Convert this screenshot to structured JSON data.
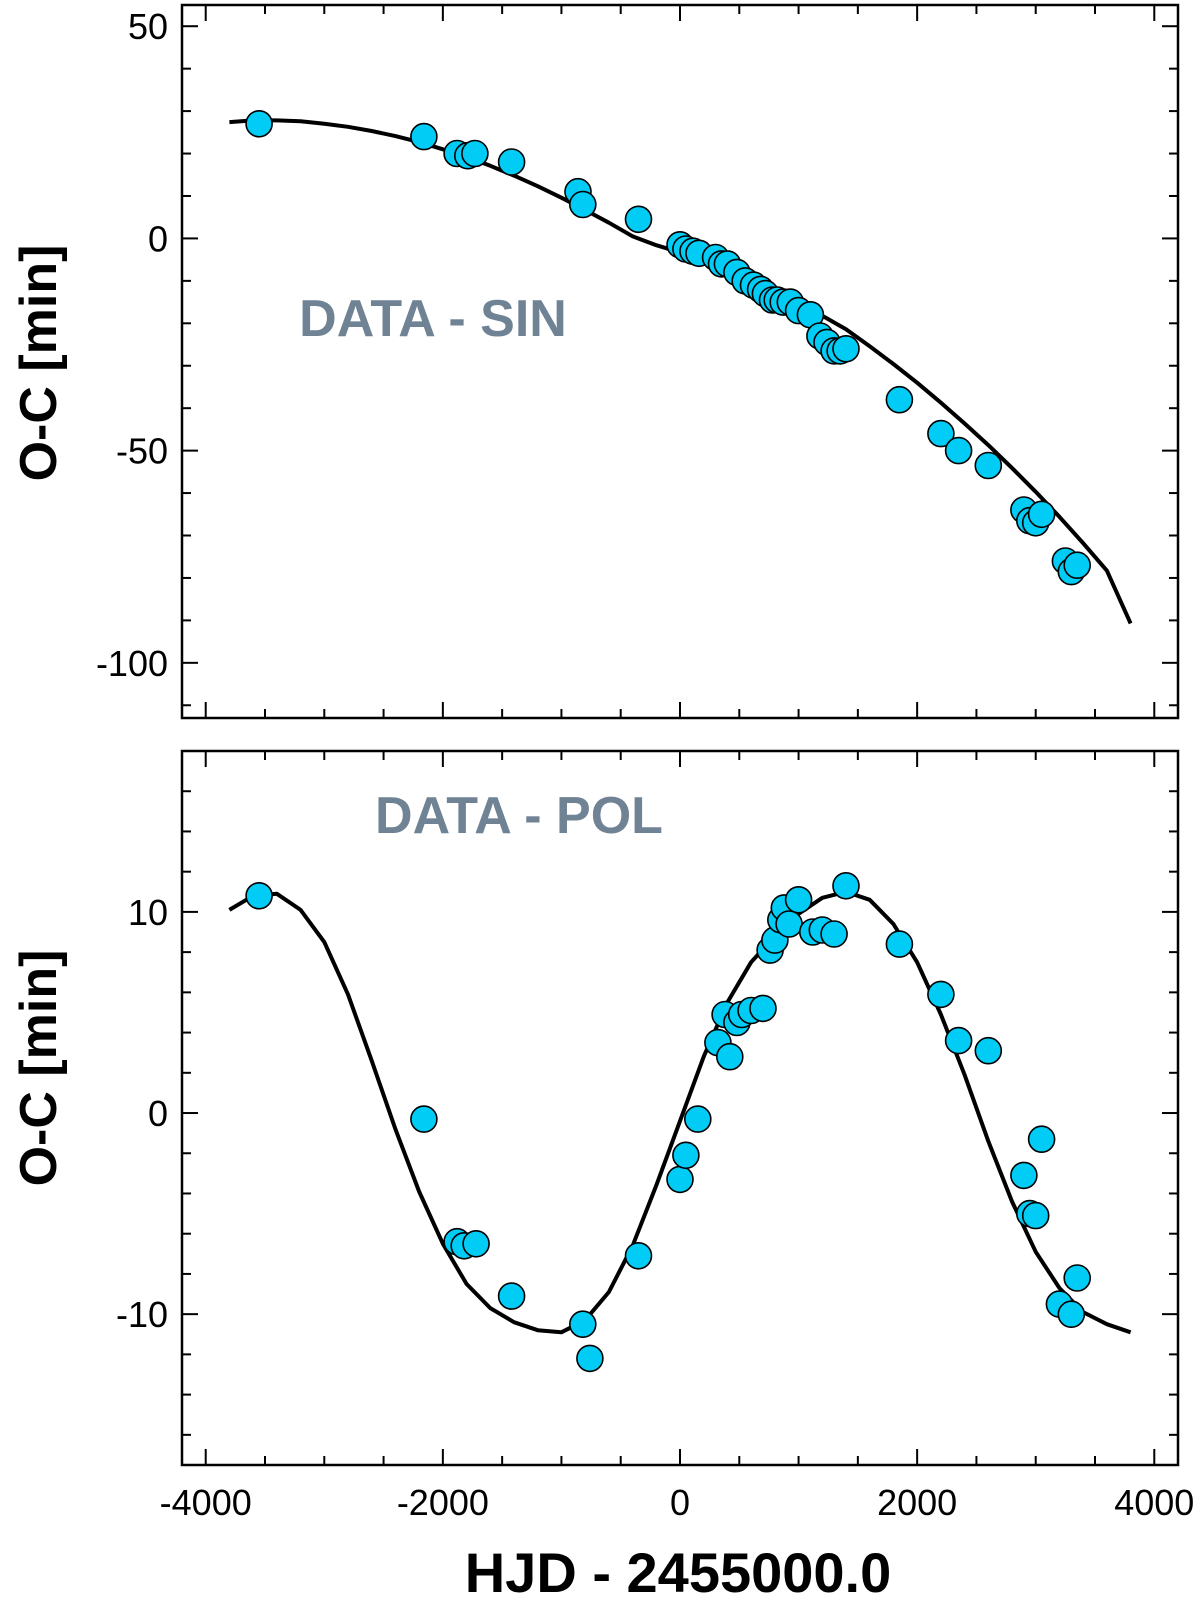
{
  "chart_data": [
    {
      "type": "scatter",
      "title": "",
      "annotation": "DATA - SIN",
      "xlabel": "",
      "ylabel": "O-C [min]",
      "xlim": [
        -4200,
        4200
      ],
      "ylim": [
        -113,
        55
      ],
      "xticks": [
        -4000,
        -2000,
        0,
        2000,
        4000
      ],
      "xticklabels": [
        "",
        "",
        "",
        "",
        ""
      ],
      "yticks": [
        50,
        0,
        -50,
        -100
      ],
      "yticklabels": [
        "50",
        "0",
        "-50",
        "-100"
      ],
      "grid": false,
      "marker_color": "#00ccf5",
      "curve_color": "#000000",
      "series": [
        {
          "name": "data",
          "x": [
            -3550,
            -2160,
            -1880,
            -1790,
            -1730,
            -1420,
            -860,
            -820,
            -350,
            0,
            50,
            110,
            160,
            300,
            350,
            400,
            480,
            550,
            620,
            680,
            720,
            780,
            820,
            870,
            930,
            1000,
            1100,
            1180,
            1240,
            1300,
            1350,
            1400,
            1850,
            2200,
            2350,
            2600,
            2900,
            2950,
            3000,
            3050,
            3250,
            3300,
            3350
          ],
          "y": [
            27,
            24,
            20,
            19.5,
            20,
            18,
            11,
            8,
            4.5,
            -1.5,
            -2.5,
            -3,
            -3.5,
            -4.5,
            -6,
            -6,
            -8,
            -10,
            -11,
            -12,
            -13,
            -14.5,
            -14.5,
            -15,
            -15,
            -17,
            -18,
            -23,
            -24.5,
            -26.5,
            -26.5,
            -26,
            -38,
            -46,
            -50,
            -53.5,
            -64,
            -66.5,
            -67,
            -65,
            -76,
            -78.5,
            -77
          ],
          "marker": "circle"
        },
        {
          "name": "fit",
          "x": [
            -3800,
            -3600,
            -3400,
            -3200,
            -3000,
            -2800,
            -2600,
            -2400,
            -2200,
            -2000,
            -1800,
            -1600,
            -1400,
            -1200,
            -1000,
            -800,
            -600,
            -400,
            -200,
            0,
            200,
            400,
            600,
            800,
            1000,
            1200,
            1400,
            1600,
            1800,
            2000,
            2200,
            2400,
            2600,
            2800,
            3000,
            3200,
            3400,
            3600,
            3800
          ],
          "y": [
            27.4,
            27.8,
            27.8,
            27.6,
            27.0,
            26.3,
            25.3,
            24.1,
            22.7,
            21.0,
            19.2,
            17.1,
            14.8,
            12.3,
            9.6,
            6.7,
            3.7,
            0.5,
            -1.6,
            -3.3,
            -5.5,
            -7.8,
            -10.2,
            -12.7,
            -15.4,
            -18.2,
            -21.4,
            -25.4,
            -29.6,
            -34.0,
            -38.7,
            -43.6,
            -48.7,
            -54.1,
            -59.7,
            -65.6,
            -71.8,
            -78.3,
            -90.7
          ],
          "style": "line"
        }
      ]
    },
    {
      "type": "scatter",
      "title": "",
      "annotation": "DATA - POL",
      "xlabel": "HJD - 2455000.0",
      "ylabel": "O-C [min]",
      "xlim": [
        -4200,
        4200
      ],
      "ylim": [
        -17.5,
        18
      ],
      "xticks": [
        -4000,
        -2000,
        0,
        2000,
        4000
      ],
      "xticklabels": [
        "-4000",
        "-2000",
        "0",
        "2000",
        "4000"
      ],
      "yticks": [
        10,
        0,
        -10
      ],
      "yticklabels": [
        "10",
        "0",
        "-10"
      ],
      "grid": false,
      "marker_color": "#00ccf5",
      "curve_color": "#000000",
      "series": [
        {
          "name": "data",
          "x": [
            -3550,
            -2160,
            -1880,
            -1820,
            -1720,
            -1420,
            -820,
            -760,
            -350,
            0,
            50,
            150,
            320,
            380,
            420,
            480,
            520,
            600,
            700,
            760,
            800,
            850,
            880,
            920,
            1000,
            1120,
            1200,
            1300,
            1400,
            1850,
            2200,
            2350,
            2600,
            2900,
            2950,
            3000,
            3050,
            3200,
            3300,
            3350
          ],
          "y": [
            10.8,
            -0.3,
            -6.4,
            -6.6,
            -6.5,
            -9.1,
            -10.5,
            -12.2,
            -7.1,
            -3.3,
            -2.1,
            -0.3,
            3.5,
            4.9,
            2.8,
            4.5,
            4.9,
            5.1,
            5.2,
            8.1,
            8.6,
            9.6,
            10.2,
            9.4,
            10.6,
            9.0,
            9.1,
            8.9,
            11.3,
            8.4,
            5.9,
            3.6,
            3.1,
            -3.1,
            -5.0,
            -5.1,
            -1.3,
            -9.5,
            -10.0,
            -8.2
          ],
          "marker": "circle"
        },
        {
          "name": "fit",
          "x": [
            -3800,
            -3600,
            -3400,
            -3200,
            -3000,
            -2800,
            -2600,
            -2400,
            -2200,
            -2000,
            -1800,
            -1600,
            -1400,
            -1200,
            -1000,
            -800,
            -600,
            -400,
            -200,
            0,
            200,
            400,
            600,
            800,
            1000,
            1200,
            1400,
            1600,
            1800,
            2000,
            2200,
            2400,
            2600,
            2800,
            3000,
            3200,
            3400,
            3600,
            3800
          ],
          "y": [
            10.1,
            10.8,
            10.9,
            10.1,
            8.5,
            5.9,
            2.6,
            -0.8,
            -3.9,
            -6.5,
            -8.5,
            -9.7,
            -10.4,
            -10.8,
            -10.9,
            -10.3,
            -8.9,
            -6.6,
            -3.6,
            -0.4,
            2.8,
            5.5,
            7.5,
            8.8,
            9.9,
            10.7,
            11.0,
            10.6,
            9.4,
            7.5,
            4.9,
            1.9,
            -1.4,
            -4.4,
            -6.9,
            -8.7,
            -9.9,
            -10.5,
            -10.9
          ],
          "style": "line"
        }
      ]
    }
  ]
}
